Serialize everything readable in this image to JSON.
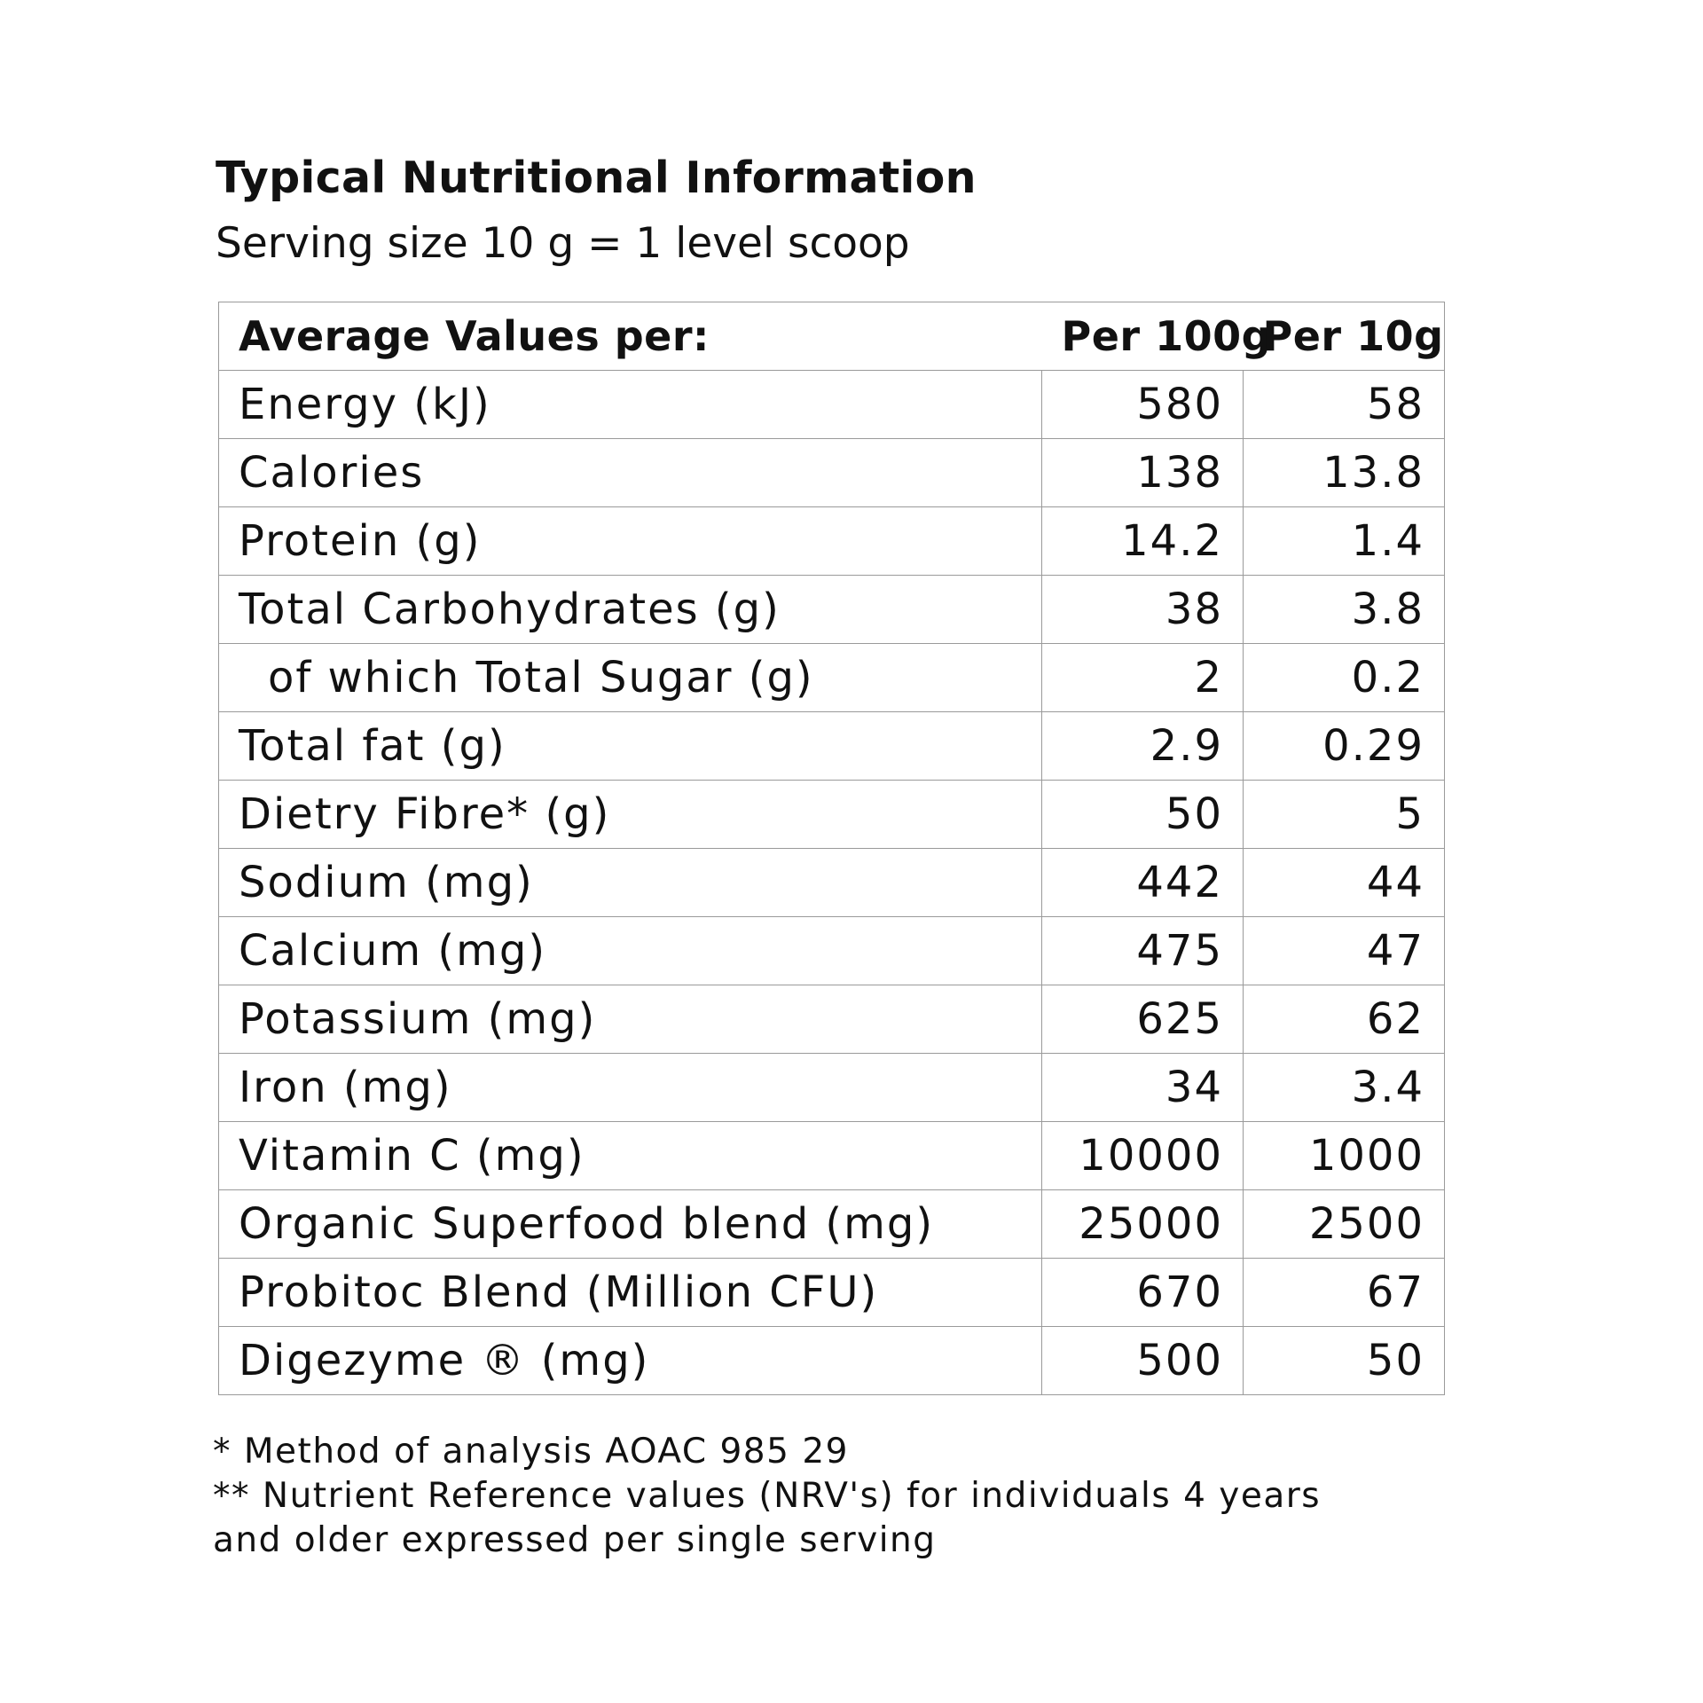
{
  "header": {
    "title": "Typical Nutritional Information",
    "subtitle": "Serving size 10 g = 1 level scoop"
  },
  "table": {
    "columns": [
      "Average Values per:",
      "Per 100g",
      "Per 10g"
    ],
    "rows": [
      {
        "label": "Energy (kJ)",
        "per100": "580",
        "per10": "58"
      },
      {
        "label": "Calories",
        "per100": "138",
        "per10": "13.8"
      },
      {
        "label": "Protein (g)",
        "per100": "14.2",
        "per10": "1.4"
      },
      {
        "label": "Total Carbohydrates (g)",
        "per100": "38",
        "per10": "3.8"
      },
      {
        "label": "of which Total Sugar (g)",
        "per100": "2",
        "per10": "0.2"
      },
      {
        "label": "Total fat (g)",
        "per100": "2.9",
        "per10": "0.29"
      },
      {
        "label": "Dietry Fibre* (g)",
        "per100": "50",
        "per10": "5"
      },
      {
        "label": "Sodium (mg)",
        "per100": "442",
        "per10": "44"
      },
      {
        "label": "Calcium (mg)",
        "per100": "475",
        "per10": "47"
      },
      {
        "label": "Potassium (mg)",
        "per100": "625",
        "per10": "62"
      },
      {
        "label": "Iron (mg)",
        "per100": "34",
        "per10": "3.4"
      },
      {
        "label": "Vitamin C (mg)",
        "per100": "10000",
        "per10": "1000"
      },
      {
        "label": "Organic Superfood blend (mg)",
        "per100": "25000",
        "per10": "2500"
      },
      {
        "label": "Probitoc Blend (Million CFU)",
        "per100": "670",
        "per10": "67"
      },
      {
        "label": "Digezyme ® (mg)",
        "per100": "500",
        "per10": "50"
      }
    ]
  },
  "footnotes": [
    "* Method of analysis AOAC 985 29",
    "** Nutrient Reference values (NRV's) for individuals 4 years",
    "and older expressed per single serving"
  ]
}
